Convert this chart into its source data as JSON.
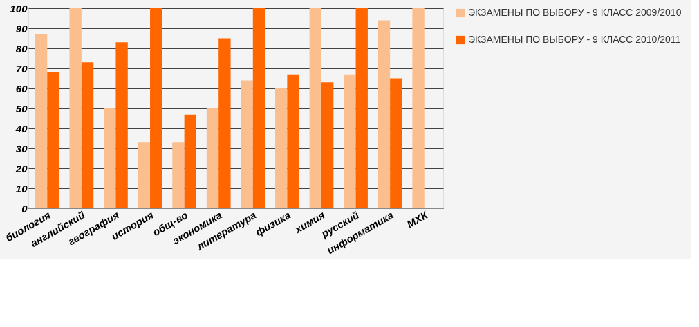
{
  "chart_data": {
    "type": "bar",
    "categories": [
      "биология",
      "английский",
      "география",
      "история",
      "общ-во",
      "экономика",
      "литература",
      "физика",
      "химия",
      "русский",
      "информатика",
      "МХК"
    ],
    "series": [
      {
        "name": "ЭКЗАМЕНЫ  ПО  ВЫБОРУ - 9 КЛАСС 2009/2010",
        "color": "#fbbf8f",
        "values": [
          87,
          100,
          50,
          33,
          33,
          50,
          64,
          60,
          100,
          67,
          94,
          100
        ]
      },
      {
        "name": "ЭКЗАМЕНЫ  ПО  ВЫБОРУ - 9 КЛАСС 2010/2011",
        "color": "#ff6600",
        "values": [
          68,
          73,
          83,
          100,
          47,
          85,
          100,
          67,
          63,
          100,
          65,
          0
        ]
      }
    ],
    "ylim": [
      0,
      100
    ],
    "yticks": [
      0,
      10,
      20,
      30,
      40,
      50,
      60,
      70,
      80,
      90,
      100
    ],
    "grid": "y",
    "legend": "right"
  }
}
